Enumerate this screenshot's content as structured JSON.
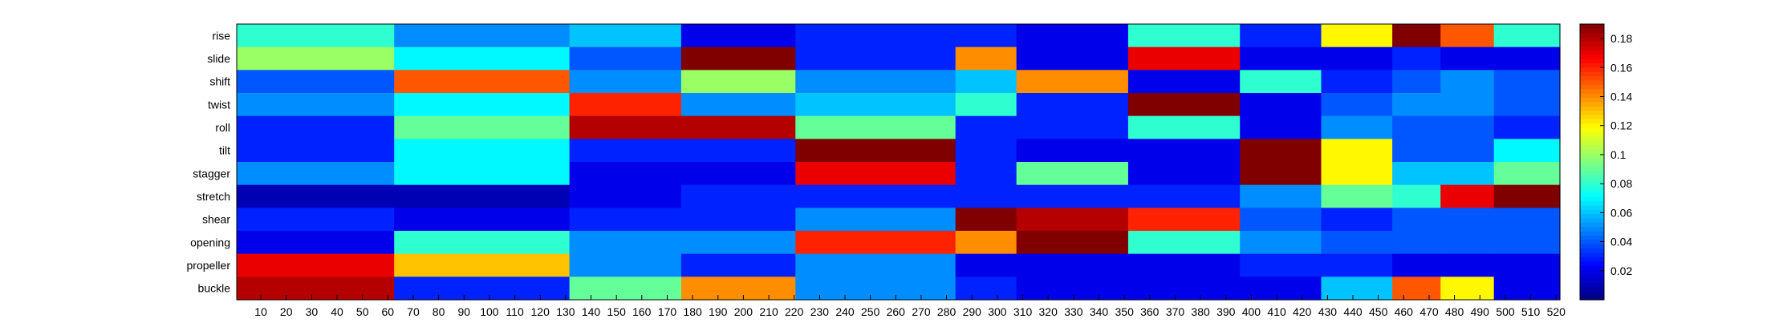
{
  "chart_data": {
    "type": "heatmap",
    "title": "",
    "xlabel": "",
    "ylabel": "",
    "rows": [
      "rise",
      "slide",
      "shift",
      "twist",
      "roll",
      "tilt",
      "stagger",
      "stretch",
      "shear",
      "opening",
      "propeller",
      "buckle"
    ],
    "x_range": [
      1,
      521
    ],
    "x_ticks": [
      10,
      20,
      30,
      40,
      50,
      60,
      70,
      80,
      90,
      100,
      110,
      120,
      130,
      140,
      150,
      160,
      170,
      180,
      190,
      200,
      210,
      220,
      230,
      240,
      250,
      260,
      270,
      280,
      290,
      300,
      310,
      320,
      330,
      340,
      350,
      360,
      370,
      380,
      390,
      400,
      410,
      420,
      430,
      440,
      450,
      460,
      470,
      480,
      490,
      500,
      510,
      520
    ],
    "colormap": "jet",
    "color_range": [
      0,
      0.19
    ],
    "colorbar_ticks": [
      0.02,
      0.04,
      0.06,
      0.08,
      0.1,
      0.12,
      0.14,
      0.16,
      0.18
    ],
    "grid": false,
    "colorbar_position": "right",
    "segments": [
      {
        "x0": 1,
        "x1": 63,
        "values": [
          0.08,
          0.1,
          0.04,
          0.05,
          0.03,
          0.03,
          0.05,
          0.01,
          0.03,
          0.02,
          0.17,
          0.18
        ]
      },
      {
        "x0": 63,
        "x1": 132,
        "values": [
          0.05,
          0.07,
          0.15,
          0.07,
          0.09,
          0.07,
          0.07,
          0.01,
          0.02,
          0.08,
          0.13,
          0.03
        ]
      },
      {
        "x0": 132,
        "x1": 176,
        "values": [
          0.06,
          0.04,
          0.05,
          0.16,
          0.18,
          0.03,
          0.02,
          0.02,
          0.03,
          0.05,
          0.05,
          0.09
        ]
      },
      {
        "x0": 176,
        "x1": 221,
        "values": [
          0.02,
          0.19,
          0.1,
          0.05,
          0.18,
          0.03,
          0.02,
          0.03,
          0.03,
          0.05,
          0.03,
          0.14
        ]
      },
      {
        "x0": 221,
        "x1": 284,
        "values": [
          0.03,
          0.03,
          0.05,
          0.06,
          0.09,
          0.19,
          0.17,
          0.03,
          0.05,
          0.16,
          0.05,
          0.05
        ]
      },
      {
        "x0": 284,
        "x1": 308,
        "values": [
          0.03,
          0.14,
          0.06,
          0.08,
          0.03,
          0.03,
          0.03,
          0.03,
          0.19,
          0.14,
          0.02,
          0.03
        ]
      },
      {
        "x0": 308,
        "x1": 352,
        "values": [
          0.02,
          0.02,
          0.14,
          0.03,
          0.03,
          0.02,
          0.09,
          0.03,
          0.18,
          0.19,
          0.02,
          0.02
        ]
      },
      {
        "x0": 352,
        "x1": 396,
        "values": [
          0.08,
          0.17,
          0.02,
          0.19,
          0.08,
          0.02,
          0.02,
          0.03,
          0.16,
          0.08,
          0.02,
          0.02
        ]
      },
      {
        "x0": 396,
        "x1": 428,
        "values": [
          0.03,
          0.02,
          0.08,
          0.02,
          0.02,
          0.19,
          0.19,
          0.05,
          0.04,
          0.05,
          0.03,
          0.02
        ]
      },
      {
        "x0": 428,
        "x1": 456,
        "values": [
          0.12,
          0.02,
          0.03,
          0.04,
          0.05,
          0.12,
          0.12,
          0.09,
          0.03,
          0.04,
          0.03,
          0.06
        ]
      },
      {
        "x0": 456,
        "x1": 475,
        "values": [
          0.19,
          0.03,
          0.04,
          0.05,
          0.04,
          0.04,
          0.06,
          0.08,
          0.04,
          0.04,
          0.02,
          0.15
        ]
      },
      {
        "x0": 475,
        "x1": 496,
        "values": [
          0.15,
          0.02,
          0.05,
          0.05,
          0.04,
          0.04,
          0.06,
          0.17,
          0.04,
          0.04,
          0.02,
          0.12
        ]
      },
      {
        "x0": 496,
        "x1": 522,
        "values": [
          0.08,
          0.02,
          0.04,
          0.04,
          0.03,
          0.07,
          0.09,
          0.19,
          0.04,
          0.04,
          0.02,
          0.02
        ]
      }
    ]
  }
}
